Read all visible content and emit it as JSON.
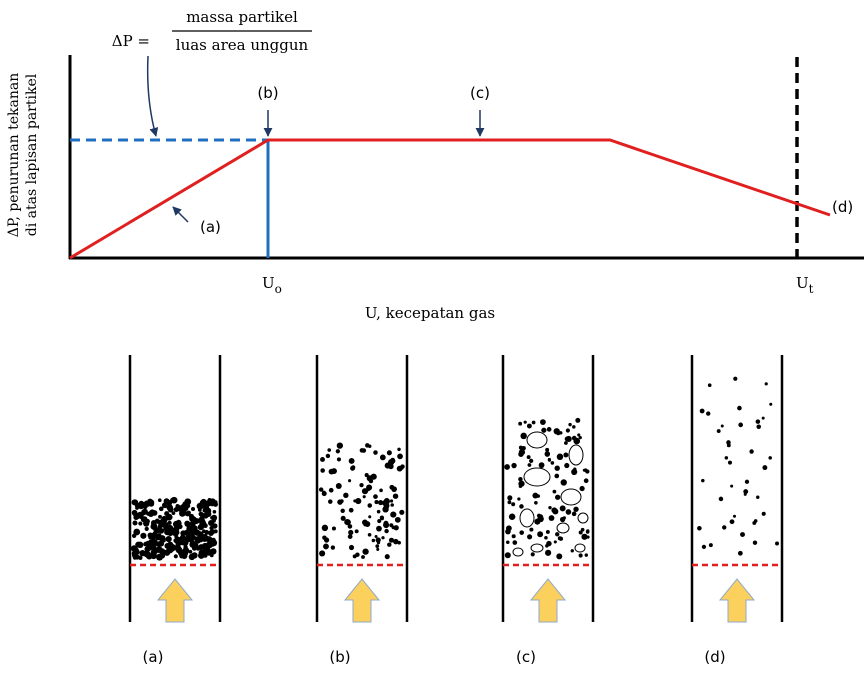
{
  "formula": {
    "lhs": "ΔP =",
    "numerator": "massa partikel",
    "denominator": "luas area unggun"
  },
  "y_axis_label": [
    "ΔP, penurunan tekanan",
    "di atas lapisan partikel"
  ],
  "x_axis_label": "U, kecepatan gas",
  "x_markers": [
    {
      "main": "U",
      "sub": "o"
    },
    {
      "main": "U",
      "sub": "t"
    }
  ],
  "curve_labels": [
    "(a)",
    "(b)",
    "(c)",
    "(d)"
  ],
  "panel_labels": [
    "(a)",
    "(b)",
    "(c)",
    "(d)"
  ]
}
